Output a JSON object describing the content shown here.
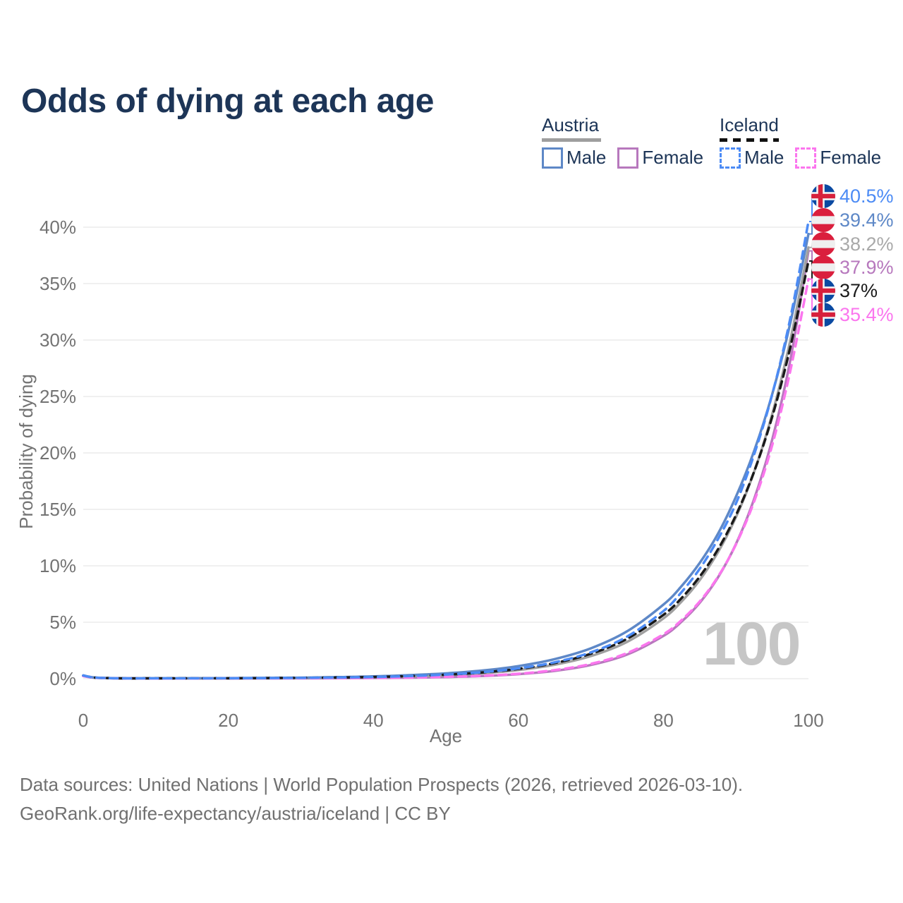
{
  "title": "Odds of dying at each age",
  "legend": {
    "groups": [
      {
        "label": "Austria",
        "line_style": "solid",
        "underline_color": "#9e9e9e",
        "items": [
          {
            "label": "Male",
            "color": "#5e88c7"
          },
          {
            "label": "Female",
            "color": "#b778bd"
          }
        ]
      },
      {
        "label": "Iceland",
        "line_style": "dashed",
        "underline_color": "#1a1a1a",
        "items": [
          {
            "label": "Male",
            "color": "#4c8bf5"
          },
          {
            "label": "Female",
            "color": "#fb76ee"
          }
        ]
      }
    ]
  },
  "end_labels": [
    {
      "flag": "iceland",
      "value": "40.5%",
      "value_percent": 40.5,
      "color": "#4c8bf5",
      "series": "Iceland Male"
    },
    {
      "flag": "austria",
      "value": "39.4%",
      "value_percent": 39.4,
      "color": "#5e88c7",
      "series": "Austria Male"
    },
    {
      "flag": "austria",
      "value": "38.2%",
      "value_percent": 38.2,
      "color": "#a9a9a9",
      "series": "Austria Both"
    },
    {
      "flag": "austria",
      "value": "37.9%",
      "value_percent": 37.9,
      "color": "#b778bd",
      "series": "Austria Female"
    },
    {
      "flag": "iceland",
      "value": "37%",
      "value_percent": 37.0,
      "color": "#1a1a1a",
      "series": "Iceland Both"
    },
    {
      "flag": "iceland",
      "value": "35.4%",
      "value_percent": 35.4,
      "color": "#fb76ee",
      "series": "Iceland Female"
    }
  ],
  "watermark": "100",
  "axes": {
    "x": {
      "label": "Age",
      "ticks": [
        0,
        20,
        40,
        60,
        80,
        100
      ]
    },
    "y": {
      "label": "Probability of dying",
      "ticks": [
        "0%",
        "5%",
        "10%",
        "15%",
        "20%",
        "25%",
        "30%",
        "35%",
        "40%"
      ],
      "tick_step_percent": 5
    }
  },
  "footer": {
    "line1": "Data sources: United Nations | World Population Prospects (2026, retrieved 2026-03-10).",
    "line2": "GeoRank.org/life-expectancy/austria/iceland | CC BY"
  },
  "chart_data": {
    "type": "line",
    "title": "Odds of dying at each age",
    "xlabel": "Age",
    "ylabel": "Probability of dying",
    "xlim": [
      0,
      100
    ],
    "ylim_percent": [
      0,
      43
    ],
    "grid": "horizontal",
    "legend_position": "top-right",
    "ages": [
      0,
      1,
      2,
      5,
      10,
      15,
      20,
      25,
      30,
      35,
      40,
      45,
      50,
      55,
      60,
      65,
      70,
      75,
      80,
      82.5,
      85,
      87.5,
      90,
      92.5,
      95,
      97.5,
      100
    ],
    "series": [
      {
        "name": "Austria Female",
        "country": "Austria",
        "sex": "Female",
        "color": "#b778bd",
        "dashed": false,
        "end_value_percent": 37.9,
        "values_percent": [
          0.23,
          0.12,
          0.07,
          0.03,
          0.02,
          0.02,
          0.02,
          0.03,
          0.03,
          0.04,
          0.06,
          0.09,
          0.14,
          0.23,
          0.4,
          0.69,
          1.21,
          2.14,
          3.79,
          5.05,
          6.72,
          8.95,
          11.93,
          15.9,
          21.18,
          28.23,
          37.9
        ]
      },
      {
        "name": "Austria Both",
        "country": "Austria",
        "sex": "Both",
        "color": "#a0a0a0",
        "dashed": false,
        "end_value_percent": 38.2,
        "values_percent": [
          0.26,
          0.13,
          0.08,
          0.03,
          0.03,
          0.03,
          0.03,
          0.04,
          0.06,
          0.08,
          0.12,
          0.19,
          0.29,
          0.47,
          0.76,
          1.23,
          2.0,
          3.26,
          5.34,
          6.83,
          8.73,
          11.18,
          14.3,
          18.31,
          23.43,
          29.99,
          38.2
        ]
      },
      {
        "name": "Austria Male",
        "country": "Austria",
        "sex": "Male",
        "color": "#5e88c7",
        "dashed": false,
        "end_value_percent": 39.4,
        "values_percent": [
          0.29,
          0.15,
          0.09,
          0.04,
          0.03,
          0.04,
          0.05,
          0.07,
          0.09,
          0.14,
          0.2,
          0.31,
          0.47,
          0.72,
          1.11,
          1.73,
          2.69,
          4.2,
          6.56,
          8.2,
          10.25,
          12.81,
          16.12,
          20.16,
          25.2,
          31.52,
          39.4
        ]
      },
      {
        "name": "Iceland Both",
        "country": "Iceland",
        "sex": "Both",
        "color": "#1a1a1a",
        "dashed": true,
        "end_value_percent": 37.0,
        "values_percent": [
          0.26,
          0.13,
          0.08,
          0.03,
          0.03,
          0.03,
          0.04,
          0.05,
          0.07,
          0.1,
          0.15,
          0.23,
          0.35,
          0.55,
          0.87,
          1.38,
          2.21,
          3.53,
          5.65,
          7.14,
          9.04,
          11.44,
          14.48,
          18.33,
          23.2,
          29.37,
          37.0
        ]
      },
      {
        "name": "Iceland Female",
        "country": "Iceland",
        "sex": "Female",
        "color": "#fb76ee",
        "dashed": true,
        "end_value_percent": 35.4,
        "values_percent": [
          0.23,
          0.12,
          0.07,
          0.03,
          0.02,
          0.02,
          0.03,
          0.03,
          0.04,
          0.05,
          0.07,
          0.1,
          0.16,
          0.26,
          0.44,
          0.76,
          1.31,
          2.27,
          3.93,
          5.19,
          6.84,
          9.01,
          11.89,
          15.68,
          20.68,
          27.28,
          35.4
        ]
      },
      {
        "name": "Iceland Male",
        "country": "Iceland",
        "sex": "Male",
        "color": "#4c8bf5",
        "dashed": true,
        "end_value_percent": 40.5,
        "values_percent": [
          0.28,
          0.14,
          0.08,
          0.03,
          0.03,
          0.03,
          0.04,
          0.05,
          0.07,
          0.1,
          0.15,
          0.23,
          0.36,
          0.57,
          0.91,
          1.45,
          2.33,
          3.73,
          5.99,
          7.67,
          9.73,
          12.34,
          15.52,
          19.85,
          25.18,
          31.94,
          40.5
        ]
      }
    ]
  }
}
